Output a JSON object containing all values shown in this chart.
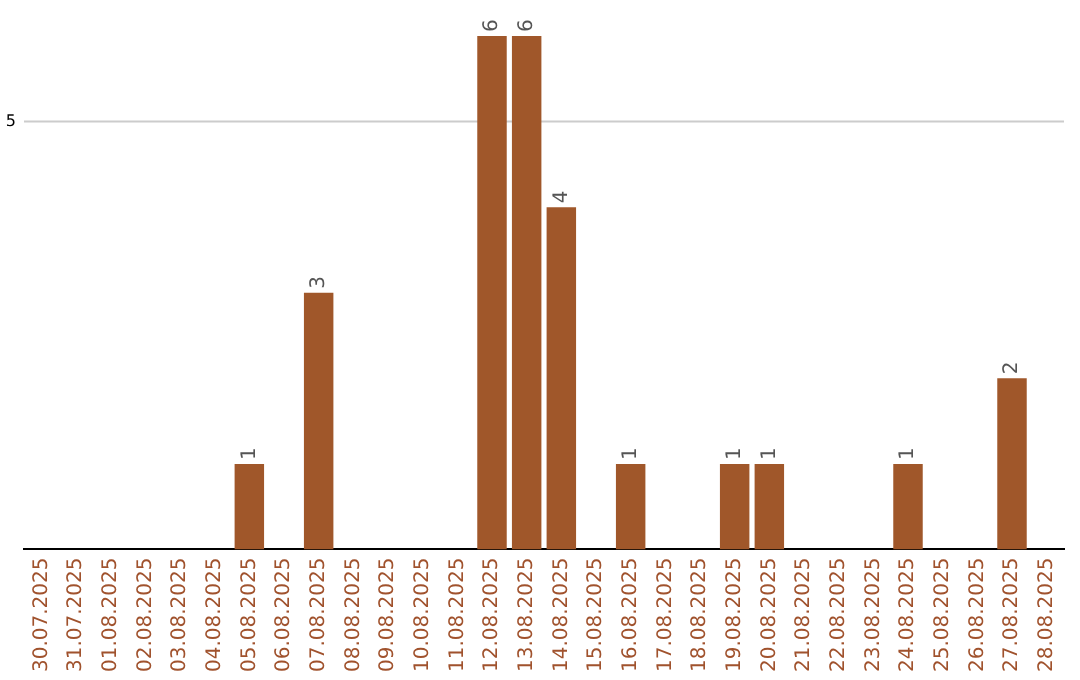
{
  "chart_data": {
    "type": "bar",
    "categories": [
      "30.07.2025",
      "31.07.2025",
      "01.08.2025",
      "02.08.2025",
      "03.08.2025",
      "04.08.2025",
      "05.08.2025",
      "06.08.2025",
      "07.08.2025",
      "08.08.2025",
      "09.08.2025",
      "10.08.2025",
      "11.08.2025",
      "12.08.2025",
      "13.08.2025",
      "14.08.2025",
      "15.08.2025",
      "16.08.2025",
      "17.08.2025",
      "18.08.2025",
      "19.08.2025",
      "20.08.2025",
      "21.08.2025",
      "22.08.2025",
      "23.08.2025",
      "24.08.2025",
      "25.08.2025",
      "26.08.2025",
      "27.08.2025",
      "28.08.2025"
    ],
    "values": [
      0,
      0,
      0,
      0,
      0,
      0,
      1,
      0,
      3,
      0,
      0,
      0,
      0,
      6,
      6,
      4,
      0,
      1,
      0,
      0,
      1,
      1,
      0,
      0,
      0,
      1,
      0,
      0,
      2,
      0
    ],
    "value_labels": [
      null,
      null,
      null,
      null,
      null,
      null,
      "1",
      null,
      "3",
      null,
      null,
      null,
      null,
      "6",
      "6",
      "4",
      null,
      "1",
      null,
      null,
      "1",
      "1",
      null,
      null,
      null,
      "1",
      null,
      null,
      "2",
      null
    ],
    "color": "#a0572a",
    "ref_lines": [
      {
        "axis": "y",
        "value": 5,
        "label": "5",
        "color": "#cccccc"
      }
    ],
    "legend": false
  }
}
